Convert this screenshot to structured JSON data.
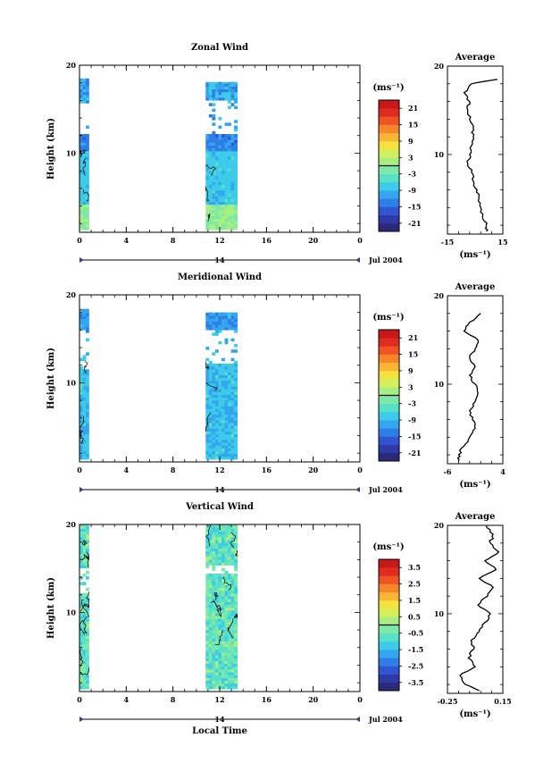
{
  "chart_data": [
    {
      "type": "heatmap",
      "title": "Zonal Wind",
      "ylabel": "Height (km)",
      "xlabel": "",
      "xlim": [
        0,
        24
      ],
      "ylim": [
        1,
        20
      ],
      "xticks": [
        "0",
        "4",
        "8",
        "12",
        "16",
        "20",
        "0"
      ],
      "yticks": [
        "10",
        "20"
      ],
      "date_marker": "14",
      "date_label": "Jul 2004",
      "data_segments": [
        {
          "t_start": 0.0,
          "t_end": 0.8,
          "h_start": 1.3,
          "h_end": 18.5,
          "gap": [
            12.0,
            15.5
          ]
        },
        {
          "t_start": 10.8,
          "t_end": 13.5,
          "h_start": 1.3,
          "h_end": 18.1,
          "gap": [
            12.1,
            15.8
          ]
        }
      ],
      "colorbar": {
        "unit": "(ms⁻¹)",
        "ticks": [
          "21",
          "15",
          "9",
          "3",
          "-3",
          "-9",
          "-15",
          "-21"
        ],
        "min": -24,
        "max": 24,
        "zero_line": true
      },
      "average_profile": {
        "title": "Average",
        "xlabel": "(ms⁻¹)",
        "xticks": [
          "-15",
          "15"
        ],
        "xlim": [
          -15,
          15
        ],
        "heights": [
          1.3,
          2,
          3,
          4,
          5,
          6,
          7,
          8,
          9,
          10,
          11,
          12,
          13,
          14,
          15,
          16,
          17,
          18,
          18.5
        ],
        "values": [
          6,
          6,
          4,
          3,
          2,
          1,
          -1,
          -2,
          -4,
          -3,
          -2,
          -1,
          -1,
          -3,
          -4,
          -3,
          -6,
          -2,
          12
        ]
      }
    },
    {
      "type": "heatmap",
      "title": "Meridional Wind",
      "ylabel": "Height (km)",
      "xlabel": "",
      "xlim": [
        0,
        24
      ],
      "ylim": [
        1,
        20
      ],
      "xticks": [
        "0",
        "4",
        "8",
        "12",
        "16",
        "20",
        "0"
      ],
      "yticks": [
        "10",
        "20"
      ],
      "date_marker": "14",
      "date_label": "Jul 2004",
      "data_segments": [
        {
          "t_start": 0.0,
          "t_end": 0.8,
          "h_start": 1.3,
          "h_end": 18.4,
          "gap": [
            11.5,
            15.8
          ]
        },
        {
          "t_start": 10.8,
          "t_end": 13.5,
          "h_start": 1.3,
          "h_end": 18.0,
          "gap": [
            12.1,
            15.8
          ]
        }
      ],
      "colorbar": {
        "unit": "(ms⁻¹)",
        "ticks": [
          "21",
          "15",
          "9",
          "3",
          "-3",
          "-9",
          "-15",
          "-21"
        ],
        "min": -24,
        "max": 24,
        "zero_line": true
      },
      "average_profile": {
        "title": "Average",
        "xlabel": "(ms⁻¹)",
        "xticks": [
          "-6",
          "4"
        ],
        "xlim": [
          -6,
          4
        ],
        "heights": [
          1.3,
          2,
          3,
          4,
          5,
          6,
          7,
          8,
          9,
          10,
          11,
          12,
          13,
          14,
          15,
          16,
          17,
          18
        ],
        "values": [
          -4,
          -4,
          -3,
          -2,
          -1,
          -1.5,
          -2,
          -1,
          -0.5,
          -1,
          -2,
          -1,
          -2,
          -1,
          -0.5,
          -3,
          -2,
          0
        ]
      }
    },
    {
      "type": "heatmap",
      "title": "Vertical Wind",
      "ylabel": "Height (km)",
      "xlabel": "Local Time",
      "xlim": [
        0,
        24
      ],
      "ylim": [
        1,
        20
      ],
      "xticks": [
        "0",
        "4",
        "8",
        "12",
        "16",
        "20",
        "0"
      ],
      "yticks": [
        "10",
        "20"
      ],
      "date_marker": "14",
      "date_label": "Jul 2004",
      "data_segments": [
        {
          "t_start": 0.0,
          "t_end": 0.8,
          "h_start": 1.3,
          "h_end": 20.0,
          "gap": [
            12.0,
            15.0
          ]
        },
        {
          "t_start": 10.8,
          "t_end": 13.5,
          "h_start": 1.3,
          "h_end": 20.0,
          "gap": [
            14.3,
            15.2
          ]
        }
      ],
      "colorbar": {
        "unit": "(ms⁻¹)",
        "ticks": [
          "3.5",
          "2.5",
          "1.5",
          "0.5",
          "-0.5",
          "-1.5",
          "-2.5",
          "-3.5"
        ],
        "min": -4,
        "max": 4,
        "zero_line": true
      },
      "average_profile": {
        "title": "Average",
        "xlabel": "(ms⁻¹)",
        "xticks": [
          "-0.25",
          "0.15"
        ],
        "xlim": [
          -0.25,
          0.15
        ],
        "heights": [
          1.3,
          2,
          3,
          4,
          5,
          6,
          7,
          8,
          9,
          10,
          11,
          12,
          13,
          14,
          15,
          16,
          17,
          18,
          19,
          20
        ],
        "values": [
          -0.02,
          -0.12,
          -0.16,
          -0.05,
          -0.1,
          -0.06,
          -0.08,
          -0.02,
          0.02,
          0.06,
          -0.03,
          0.04,
          0.08,
          -0.02,
          0.1,
          0.02,
          0.12,
          0.06,
          0.08,
          0.03
        ]
      }
    }
  ]
}
